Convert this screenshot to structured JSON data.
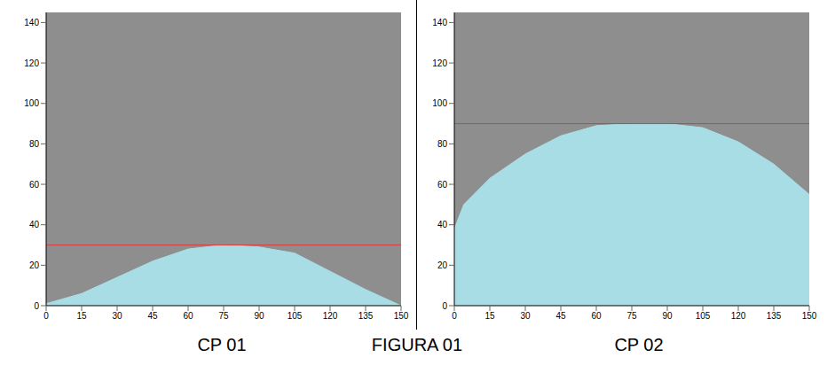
{
  "caption": "FIGURA 01",
  "chart_data": [
    {
      "type": "area",
      "title": "CP 01",
      "x": [
        0,
        15,
        30,
        45,
        60,
        75,
        90,
        105,
        120,
        135,
        150
      ],
      "values": [
        1,
        6,
        14,
        22,
        28,
        30,
        29,
        26,
        17,
        8,
        0
      ],
      "color": "#a8dde6",
      "hline": 30,
      "xlim": [
        0,
        150
      ],
      "xticks": [
        0,
        15,
        30,
        45,
        60,
        75,
        90,
        105,
        120,
        135,
        150
      ],
      "ylim": [
        0,
        145
      ],
      "yticks": [
        0,
        20,
        40,
        60,
        80,
        100,
        120,
        140
      ],
      "grid": false
    },
    {
      "type": "area",
      "title": "CP 02",
      "x": [
        0,
        0,
        4,
        15,
        30,
        45,
        60,
        75,
        90,
        105,
        120,
        135,
        145,
        150,
        150
      ],
      "values": [
        0,
        38,
        50,
        63,
        75,
        84,
        89,
        90,
        90,
        88,
        81,
        70,
        60,
        55,
        0
      ],
      "color": "#a8dde6",
      "hline": 90,
      "xlim": [
        0,
        150
      ],
      "xticks": [
        0,
        15,
        30,
        45,
        60,
        75,
        90,
        105,
        120,
        135,
        150
      ],
      "ylim": [
        0,
        145
      ],
      "yticks": [
        0,
        20,
        40,
        60,
        80,
        100,
        120,
        140
      ],
      "grid": false
    }
  ]
}
